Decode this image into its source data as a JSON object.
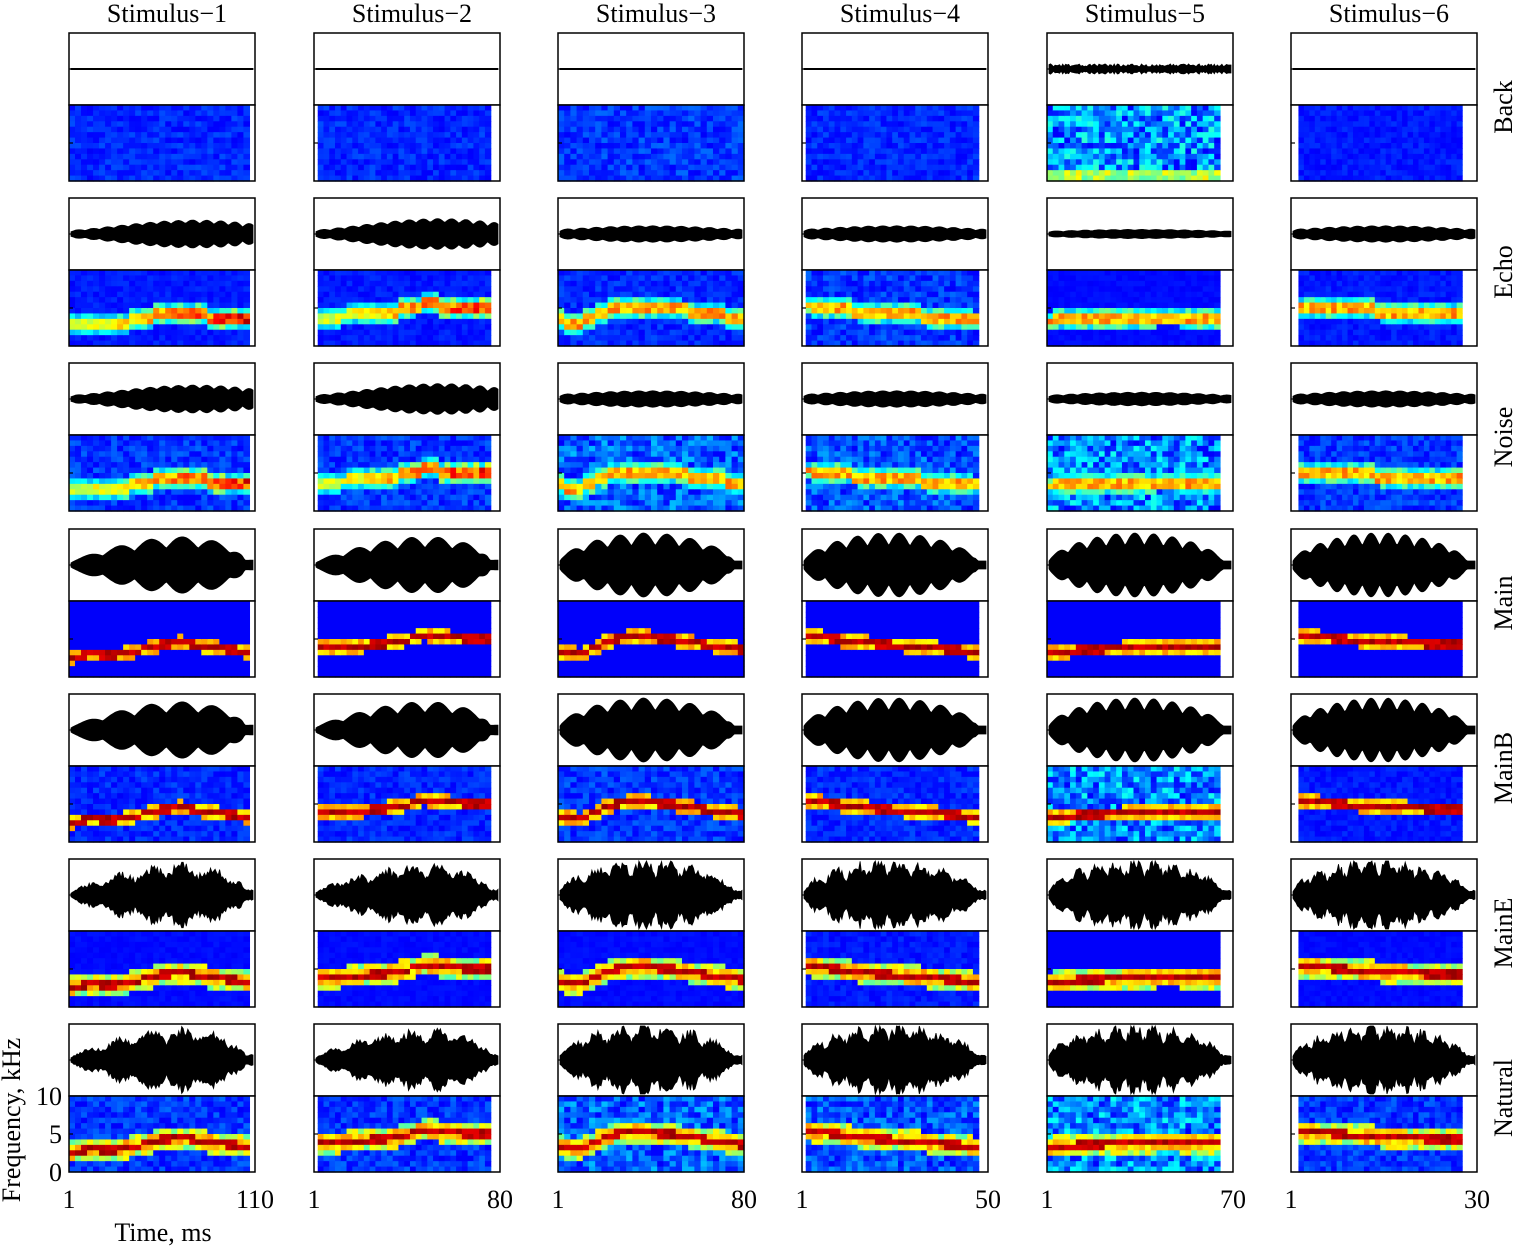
{
  "chart_data": {
    "type": "heatmap",
    "layout": "small-multiples grid: 6 stimulus columns x 7 condition rows; each cell = oscillogram (top) + spectrogram (bottom)",
    "columns": [
      "Stimulus−1",
      "Stimulus−2",
      "Stimulus−3",
      "Stimulus−4",
      "Stimulus−5",
      "Stimulus−6"
    ],
    "rows": [
      "Back",
      "Echo",
      "Noise",
      "Main",
      "MainB",
      "MainE",
      "Natural"
    ],
    "xlabel": "Time, ms",
    "ylabel": "Frequency, kHz",
    "xlim_ms": [
      [
        1,
        110
      ],
      [
        1,
        80
      ],
      [
        1,
        80
      ],
      [
        1,
        50
      ],
      [
        1,
        70
      ],
      [
        1,
        30
      ]
    ],
    "x_tick_labels": [
      [
        "1",
        "110"
      ],
      [
        "1",
        "80"
      ],
      [
        "1",
        "80"
      ],
      [
        "1",
        "50"
      ],
      [
        "1",
        "70"
      ],
      [
        "1",
        "30"
      ]
    ],
    "ylim_khz": [
      0,
      10
    ],
    "y_tick_labels": [
      "0",
      "5",
      "10"
    ],
    "colormap": "jet",
    "spectrogram_background": "#1e2c8c",
    "ridge_frequency_khz_by_stimulus": [
      [
        2.5,
        3.0,
        2.8,
        3.4,
        4.2,
        4.5,
        4.0,
        3.6,
        3.3
      ],
      [
        3.8,
        3.9,
        4.1,
        4.3,
        4.8,
        5.6,
        5.2,
        5.0,
        4.9
      ],
      [
        3.3,
        3.0,
        4.5,
        5.3,
        5.2,
        4.9,
        4.4,
        4.0,
        3.6
      ],
      [
        5.4,
        5.1,
        4.7,
        4.4,
        4.2,
        4.0,
        3.8,
        3.5,
        3.2
      ],
      [
        3.2,
        3.4,
        3.6,
        3.7,
        3.8,
        3.9,
        3.9,
        3.8,
        3.8
      ],
      [
        5.3,
        5.2,
        5.0,
        4.8,
        4.6,
        4.5,
        4.4,
        4.3,
        4.2
      ]
    ],
    "signal_level_by_row": {
      "Back": [
        0.0,
        0.0,
        0.0,
        0.0,
        0.12,
        0.0
      ],
      "Echo": [
        0.18,
        0.2,
        0.1,
        0.1,
        0.05,
        0.1
      ],
      "Noise": [
        0.18,
        0.2,
        0.1,
        0.1,
        0.08,
        0.1
      ],
      "Main": [
        1,
        1,
        1,
        1,
        1,
        1
      ],
      "MainB": [
        1,
        1,
        1,
        1,
        1,
        1
      ],
      "MainE": [
        1,
        1,
        1,
        1,
        1,
        1
      ],
      "Natural": [
        1,
        1,
        1,
        1,
        1,
        1
      ]
    },
    "background_noise_by_row": {
      "Back": [
        0.15,
        0.15,
        0.2,
        0.15,
        0.55,
        0.1
      ],
      "Echo": [
        0.1,
        0.1,
        0.15,
        0.2,
        0.05,
        0.1
      ],
      "Noise": [
        0.2,
        0.2,
        0.35,
        0.3,
        0.5,
        0.2
      ],
      "Main": [
        0.0,
        0.0,
        0.0,
        0.0,
        0.0,
        0.0
      ],
      "MainB": [
        0.15,
        0.15,
        0.2,
        0.15,
        0.5,
        0.1
      ],
      "MainE": [
        0.05,
        0.05,
        0.05,
        0.1,
        0.0,
        0.05
      ],
      "Natural": [
        0.2,
        0.2,
        0.35,
        0.3,
        0.5,
        0.2
      ]
    }
  }
}
